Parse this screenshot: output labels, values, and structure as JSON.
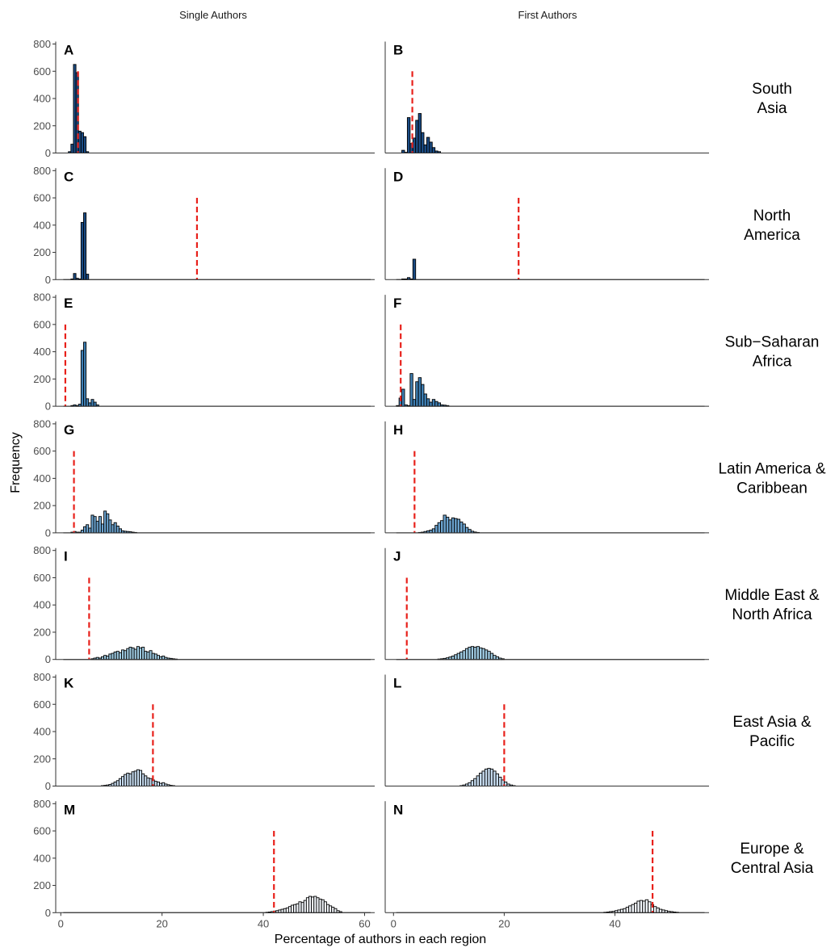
{
  "figure": {
    "column_titles": [
      "Single Authors",
      "First Authors"
    ],
    "xlabel": "Percentage of authors in each region",
    "ylabel": "Frequency"
  },
  "colors": {
    "threshold": "#e8211b",
    "bar_outline": "#000000",
    "axis": "#333333"
  },
  "chart_data": [
    {
      "type": "bar",
      "panel": "A",
      "row": 0,
      "col": 0,
      "region": "South Asia",
      "fill": "#1b4c85",
      "xlim": [
        -1,
        62
      ],
      "ylim": [
        0,
        800
      ],
      "yticks": [
        0,
        200,
        400,
        600,
        800
      ],
      "xticks": [],
      "threshold": 3.4,
      "bin_width": 0.5,
      "x": [
        1.75,
        2.25,
        2.75,
        3.25,
        3.75,
        4.25,
        4.75,
        5.25
      ],
      "values": [
        10,
        65,
        650,
        590,
        160,
        150,
        120,
        10
      ]
    },
    {
      "type": "bar",
      "panel": "B",
      "row": 0,
      "col": 1,
      "region": "South Asia",
      "fill": "#1b4c85",
      "xlim": [
        -1.5,
        57
      ],
      "ylim": [
        0,
        800
      ],
      "yticks": [],
      "xticks": [],
      "threshold": 3.4,
      "bin_width": 0.5,
      "x": [
        1.75,
        2.25,
        2.75,
        3.25,
        3.75,
        4.25,
        4.75,
        5.25,
        5.75,
        6.25,
        6.75,
        7.25,
        7.75,
        8.25
      ],
      "values": [
        20,
        5,
        260,
        70,
        110,
        240,
        290,
        150,
        60,
        115,
        80,
        40,
        15,
        10
      ]
    },
    {
      "type": "bar",
      "panel": "C",
      "row": 1,
      "col": 0,
      "region": "North America",
      "fill": "#1b4c85",
      "xlim": [
        -1,
        62
      ],
      "ylim": [
        0,
        800
      ],
      "yticks": [
        0,
        200,
        400,
        600,
        800
      ],
      "xticks": [],
      "threshold": 26.9,
      "bin_width": 0.5,
      "x": [
        2.25,
        2.75,
        3.25,
        3.75,
        4.25,
        4.75,
        5.25
      ],
      "values": [
        5,
        45,
        10,
        5,
        420,
        490,
        40
      ]
    },
    {
      "type": "bar",
      "panel": "D",
      "row": 1,
      "col": 1,
      "region": "North America",
      "fill": "#1b4c85",
      "xlim": [
        -1.5,
        57
      ],
      "ylim": [
        0,
        800
      ],
      "yticks": [],
      "xticks": [],
      "threshold": 22.6,
      "bin_width": 0.5,
      "x": [
        1.75,
        2.25,
        2.75,
        3.25,
        3.75
      ],
      "values": [
        5,
        5,
        15,
        5,
        150
      ]
    },
    {
      "type": "bar",
      "panel": "E",
      "row": 2,
      "col": 0,
      "region": "Sub−Saharan Africa",
      "fill": "#3e7fb4",
      "xlim": [
        -1,
        62
      ],
      "ylim": [
        0,
        800
      ],
      "yticks": [
        0,
        200,
        400,
        600,
        800
      ],
      "xticks": [],
      "threshold": 0.9,
      "bin_width": 0.5,
      "x": [
        2.25,
        2.75,
        3.25,
        3.75,
        4.25,
        4.75,
        5.25,
        5.75,
        6.25,
        6.75,
        7.25
      ],
      "values": [
        5,
        10,
        5,
        15,
        410,
        470,
        55,
        25,
        50,
        30,
        10
      ]
    },
    {
      "type": "bar",
      "panel": "F",
      "row": 2,
      "col": 1,
      "region": "Sub−Saharan Africa",
      "fill": "#3e7fb4",
      "xlim": [
        -1.5,
        57
      ],
      "ylim": [
        0,
        800
      ],
      "yticks": [],
      "xticks": [],
      "threshold": 1.3,
      "bin_width": 0.5,
      "x": [
        0.75,
        1.25,
        1.75,
        2.25,
        2.75,
        3.25,
        3.75,
        4.25,
        4.75,
        5.25,
        5.75,
        6.25,
        6.75,
        7.25,
        7.75,
        8.25,
        8.75,
        9.25,
        9.75
      ],
      "values": [
        5,
        60,
        125,
        10,
        5,
        240,
        50,
        180,
        210,
        160,
        90,
        55,
        30,
        50,
        35,
        25,
        10,
        8,
        5
      ]
    },
    {
      "type": "bar",
      "panel": "G",
      "row": 3,
      "col": 0,
      "region": "Latin America & Caribbean",
      "fill": "#6ba3cf",
      "xlim": [
        -1,
        62
      ],
      "ylim": [
        0,
        800
      ],
      "yticks": [
        0,
        200,
        400,
        600,
        800
      ],
      "xticks": [],
      "threshold": 2.6,
      "bin_width": 0.5,
      "x": [
        2.25,
        2.75,
        3.25,
        3.75,
        4.25,
        4.75,
        5.25,
        5.75,
        6.25,
        6.75,
        7.25,
        7.75,
        8.25,
        8.75,
        9.25,
        9.75,
        10.25,
        10.75,
        11.25,
        11.75,
        12.25,
        12.75,
        13.25,
        13.75,
        14.25,
        14.75
      ],
      "values": [
        5,
        10,
        5,
        5,
        20,
        45,
        60,
        35,
        130,
        120,
        85,
        120,
        65,
        160,
        140,
        95,
        60,
        75,
        50,
        30,
        15,
        12,
        10,
        8,
        5,
        3
      ]
    },
    {
      "type": "bar",
      "panel": "H",
      "row": 3,
      "col": 1,
      "region": "Latin America & Caribbean",
      "fill": "#6ba3cf",
      "xlim": [
        -1.5,
        57
      ],
      "ylim": [
        0,
        800
      ],
      "yticks": [],
      "xticks": [],
      "threshold": 3.8,
      "bin_width": 0.5,
      "x": [
        4.75,
        5.25,
        5.75,
        6.25,
        6.75,
        7.25,
        7.75,
        8.25,
        8.75,
        9.25,
        9.75,
        10.25,
        10.75,
        11.25,
        11.75,
        12.25,
        12.75,
        13.25,
        13.75,
        14.25,
        14.75,
        15.25
      ],
      "values": [
        3,
        5,
        10,
        15,
        20,
        30,
        55,
        75,
        90,
        130,
        115,
        95,
        110,
        105,
        100,
        80,
        65,
        40,
        25,
        12,
        6,
        3
      ]
    },
    {
      "type": "bar",
      "panel": "I",
      "row": 4,
      "col": 0,
      "region": "Middle East & North Africa",
      "fill": "#9ecae1",
      "xlim": [
        -1,
        62
      ],
      "ylim": [
        0,
        800
      ],
      "yticks": [
        0,
        200,
        400,
        600,
        800
      ],
      "xticks": [],
      "threshold": 5.6,
      "bin_width": 0.5,
      "x": [
        6.25,
        6.75,
        7.25,
        7.75,
        8.25,
        8.75,
        9.25,
        9.75,
        10.25,
        10.75,
        11.25,
        11.75,
        12.25,
        12.75,
        13.25,
        13.75,
        14.25,
        14.75,
        15.25,
        15.75,
        16.25,
        16.75,
        17.25,
        17.75,
        18.25,
        18.75,
        19.25,
        19.75,
        20.25,
        20.75,
        21.25,
        21.75,
        22.25,
        22.75
      ],
      "values": [
        5,
        10,
        15,
        10,
        20,
        30,
        25,
        40,
        45,
        55,
        60,
        50,
        70,
        65,
        80,
        90,
        85,
        75,
        95,
        85,
        90,
        60,
        55,
        65,
        45,
        40,
        30,
        20,
        25,
        15,
        10,
        8,
        5,
        3
      ]
    },
    {
      "type": "bar",
      "panel": "J",
      "row": 4,
      "col": 1,
      "region": "Middle East & North Africa",
      "fill": "#9ecae1",
      "xlim": [
        -1.5,
        57
      ],
      "ylim": [
        0,
        800
      ],
      "yticks": [],
      "xticks": [],
      "threshold": 2.4,
      "bin_width": 0.5,
      "x": [
        8.25,
        8.75,
        9.25,
        9.75,
        10.25,
        10.75,
        11.25,
        11.75,
        12.25,
        12.75,
        13.25,
        13.75,
        14.25,
        14.75,
        15.25,
        15.75,
        16.25,
        16.75,
        17.25,
        17.75,
        18.25,
        18.75,
        19.25,
        19.75
      ],
      "values": [
        3,
        5,
        8,
        12,
        18,
        25,
        35,
        45,
        55,
        65,
        80,
        90,
        95,
        90,
        95,
        85,
        80,
        70,
        60,
        45,
        30,
        20,
        10,
        5
      ]
    },
    {
      "type": "bar",
      "panel": "K",
      "row": 5,
      "col": 0,
      "region": "East Asia & Pacific",
      "fill": "#c6dbef",
      "xlim": [
        -1,
        62
      ],
      "ylim": [
        0,
        800
      ],
      "yticks": [
        0,
        200,
        400,
        600,
        800
      ],
      "xticks": [],
      "threshold": 18.2,
      "bin_width": 0.5,
      "x": [
        8.25,
        8.75,
        9.25,
        9.75,
        10.25,
        10.75,
        11.25,
        11.75,
        12.25,
        12.75,
        13.25,
        13.75,
        14.25,
        14.75,
        15.25,
        15.75,
        16.25,
        16.75,
        17.25,
        17.75,
        18.25,
        18.75,
        19.25,
        19.75,
        20.25,
        20.75,
        21.25,
        21.75,
        22.25
      ],
      "values": [
        3,
        5,
        8,
        12,
        20,
        30,
        40,
        55,
        70,
        85,
        95,
        90,
        105,
        110,
        120,
        115,
        90,
        75,
        60,
        55,
        45,
        35,
        30,
        20,
        25,
        15,
        10,
        5,
        3
      ]
    },
    {
      "type": "bar",
      "panel": "L",
      "row": 5,
      "col": 1,
      "region": "East Asia & Pacific",
      "fill": "#c6dbef",
      "xlim": [
        -1.5,
        57
      ],
      "ylim": [
        0,
        800
      ],
      "yticks": [],
      "xticks": [],
      "threshold": 20.0,
      "bin_width": 0.5,
      "x": [
        12.25,
        12.75,
        13.25,
        13.75,
        14.25,
        14.75,
        15.25,
        15.75,
        16.25,
        16.75,
        17.25,
        17.75,
        18.25,
        18.75,
        19.25,
        19.75,
        20.25,
        20.75,
        21.25,
        21.75
      ],
      "values": [
        3,
        8,
        15,
        25,
        40,
        55,
        75,
        95,
        110,
        125,
        130,
        125,
        110,
        90,
        65,
        45,
        30,
        15,
        8,
        3
      ]
    },
    {
      "type": "bar",
      "panel": "M",
      "row": 6,
      "col": 0,
      "region": "Europe & Central Asia",
      "fill": "#f2f6fb",
      "xlim": [
        -1,
        62
      ],
      "ylim": [
        0,
        800
      ],
      "yticks": [
        0,
        200,
        400,
        600,
        800
      ],
      "xticks": [
        0,
        20,
        40,
        60
      ],
      "threshold": 42.1,
      "bin_width": 0.5,
      "x": [
        40.75,
        41.25,
        41.75,
        42.25,
        42.75,
        43.25,
        43.75,
        44.25,
        44.75,
        45.25,
        45.75,
        46.25,
        46.75,
        47.25,
        47.75,
        48.25,
        48.75,
        49.25,
        49.75,
        50.25,
        50.75,
        51.25,
        51.75,
        52.25,
        52.75,
        53.25,
        53.75,
        54.25,
        54.75,
        55.25
      ],
      "values": [
        3,
        5,
        8,
        12,
        15,
        20,
        25,
        30,
        35,
        45,
        55,
        60,
        65,
        80,
        75,
        90,
        110,
        120,
        115,
        120,
        110,
        100,
        95,
        80,
        60,
        50,
        40,
        30,
        15,
        8
      ]
    },
    {
      "type": "bar",
      "panel": "N",
      "row": 6,
      "col": 1,
      "region": "Europe & Central Asia",
      "fill": "#f2f6fb",
      "xlim": [
        -1.5,
        57
      ],
      "ylim": [
        0,
        800
      ],
      "yticks": [],
      "xticks": [
        0,
        20,
        40
      ],
      "threshold": 46.8,
      "bin_width": 0.5,
      "x": [
        38.25,
        38.75,
        39.25,
        39.75,
        40.25,
        40.75,
        41.25,
        41.75,
        42.25,
        42.75,
        43.25,
        43.75,
        44.25,
        44.75,
        45.25,
        45.75,
        46.25,
        46.75,
        47.25,
        47.75,
        48.25,
        48.75,
        49.25,
        49.75,
        50.25,
        50.75,
        51.25
      ],
      "values": [
        3,
        5,
        8,
        10,
        15,
        20,
        25,
        30,
        40,
        50,
        60,
        70,
        85,
        90,
        85,
        95,
        80,
        60,
        45,
        35,
        25,
        20,
        15,
        10,
        8,
        5,
        3
      ]
    }
  ]
}
